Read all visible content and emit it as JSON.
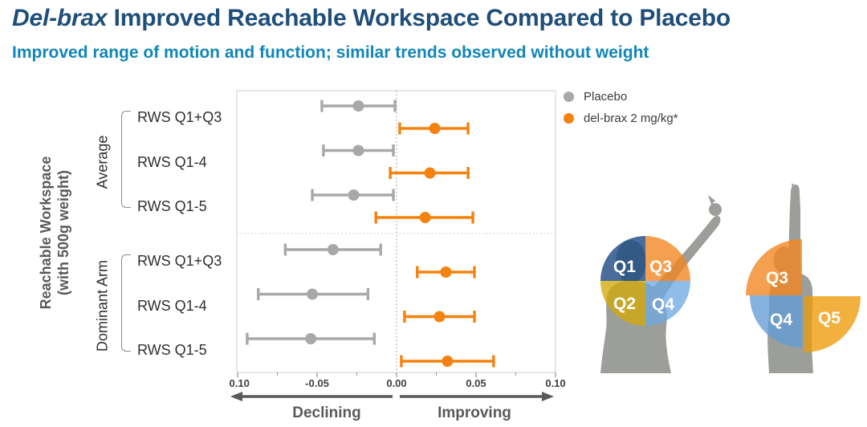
{
  "header": {
    "title_italic": "Del-brax",
    "title_rest": " Improved Reachable Workspace Compared to Placebo",
    "subtitle": "Improved range of motion and function; similar trends observed without weight"
  },
  "theme": {
    "title_color": "#1f4e79",
    "subtitle_color": "#1186b8",
    "placebo_color": "#a8a8a8",
    "drug_color": "#f5820e",
    "axis_text_color": "#404040",
    "muted_text_color": "#595959",
    "silhouette_color": "#9b9e99"
  },
  "legend": {
    "items": [
      {
        "label": "Placebo",
        "color": "#a8a8a8"
      },
      {
        "label": "del-brax 2 mg/kg*",
        "color": "#f5820e"
      }
    ]
  },
  "chart_data": {
    "type": "scatter",
    "subtype": "forest-plot-horizontal-error-bars",
    "ylabel_lines": [
      "Reachable Workspace",
      "(with 500g weight)"
    ],
    "xlim": [
      -0.1,
      0.1
    ],
    "x_ticks": [
      -0.1,
      -0.05,
      0.0,
      0.05,
      0.1
    ],
    "x_tick_labels": [
      "-0.10",
      "-0.05",
      "0.00",
      "0.05",
      "0.10"
    ],
    "x_minor_ticks": [
      -0.075,
      -0.025,
      0.025,
      0.075
    ],
    "zero_reference_line": 0.0,
    "axis_annotations": {
      "left": "Declining",
      "right": "Improving"
    },
    "series_names": [
      "Placebo",
      "del-brax 2 mg/kg*"
    ],
    "groups": [
      {
        "label": "Average",
        "rows": [
          {
            "label": "RWS Q1+Q3",
            "placebo": {
              "mean": -0.024,
              "lo": -0.047,
              "hi": -0.001
            },
            "delbrax": {
              "mean": 0.024,
              "lo": 0.002,
              "hi": 0.045
            }
          },
          {
            "label": "RWS Q1-4",
            "placebo": {
              "mean": -0.024,
              "lo": -0.046,
              "hi": -0.002
            },
            "delbrax": {
              "mean": 0.021,
              "lo": -0.004,
              "hi": 0.045
            }
          },
          {
            "label": "RWS Q1-5",
            "placebo": {
              "mean": -0.027,
              "lo": -0.053,
              "hi": -0.002
            },
            "delbrax": {
              "mean": 0.018,
              "lo": -0.013,
              "hi": 0.048
            }
          }
        ]
      },
      {
        "label": "Dominant Arm",
        "rows": [
          {
            "label": "RWS Q1+Q3",
            "placebo": {
              "mean": -0.04,
              "lo": -0.07,
              "hi": -0.01
            },
            "delbrax": {
              "mean": 0.031,
              "lo": 0.013,
              "hi": 0.049
            }
          },
          {
            "label": "RWS Q1-4",
            "placebo": {
              "mean": -0.053,
              "lo": -0.087,
              "hi": -0.018
            },
            "delbrax": {
              "mean": 0.027,
              "lo": 0.005,
              "hi": 0.049
            }
          },
          {
            "label": "RWS Q1-5",
            "placebo": {
              "mean": -0.054,
              "lo": -0.094,
              "hi": -0.014
            },
            "delbrax": {
              "mean": 0.032,
              "lo": 0.003,
              "hi": 0.061
            }
          }
        ]
      }
    ]
  },
  "figures": {
    "left": {
      "description": "person reaching diagonally with 4-quadrant reachable-workspace disc",
      "quadrants": [
        {
          "label": "Q1",
          "color": "#16457f"
        },
        {
          "label": "Q3",
          "color": "#f2851f"
        },
        {
          "label": "Q2",
          "color": "#d4a90a"
        },
        {
          "label": "Q4",
          "color": "#70a9e2"
        }
      ]
    },
    "right": {
      "description": "person reaching straight up with Q3/Q4/Q5 wedges",
      "quadrants": [
        {
          "label": "Q3",
          "color": "#f2851f"
        },
        {
          "label": "Q4",
          "color": "#639cd6"
        },
        {
          "label": "Q5",
          "color": "#ee9b09"
        }
      ]
    }
  }
}
